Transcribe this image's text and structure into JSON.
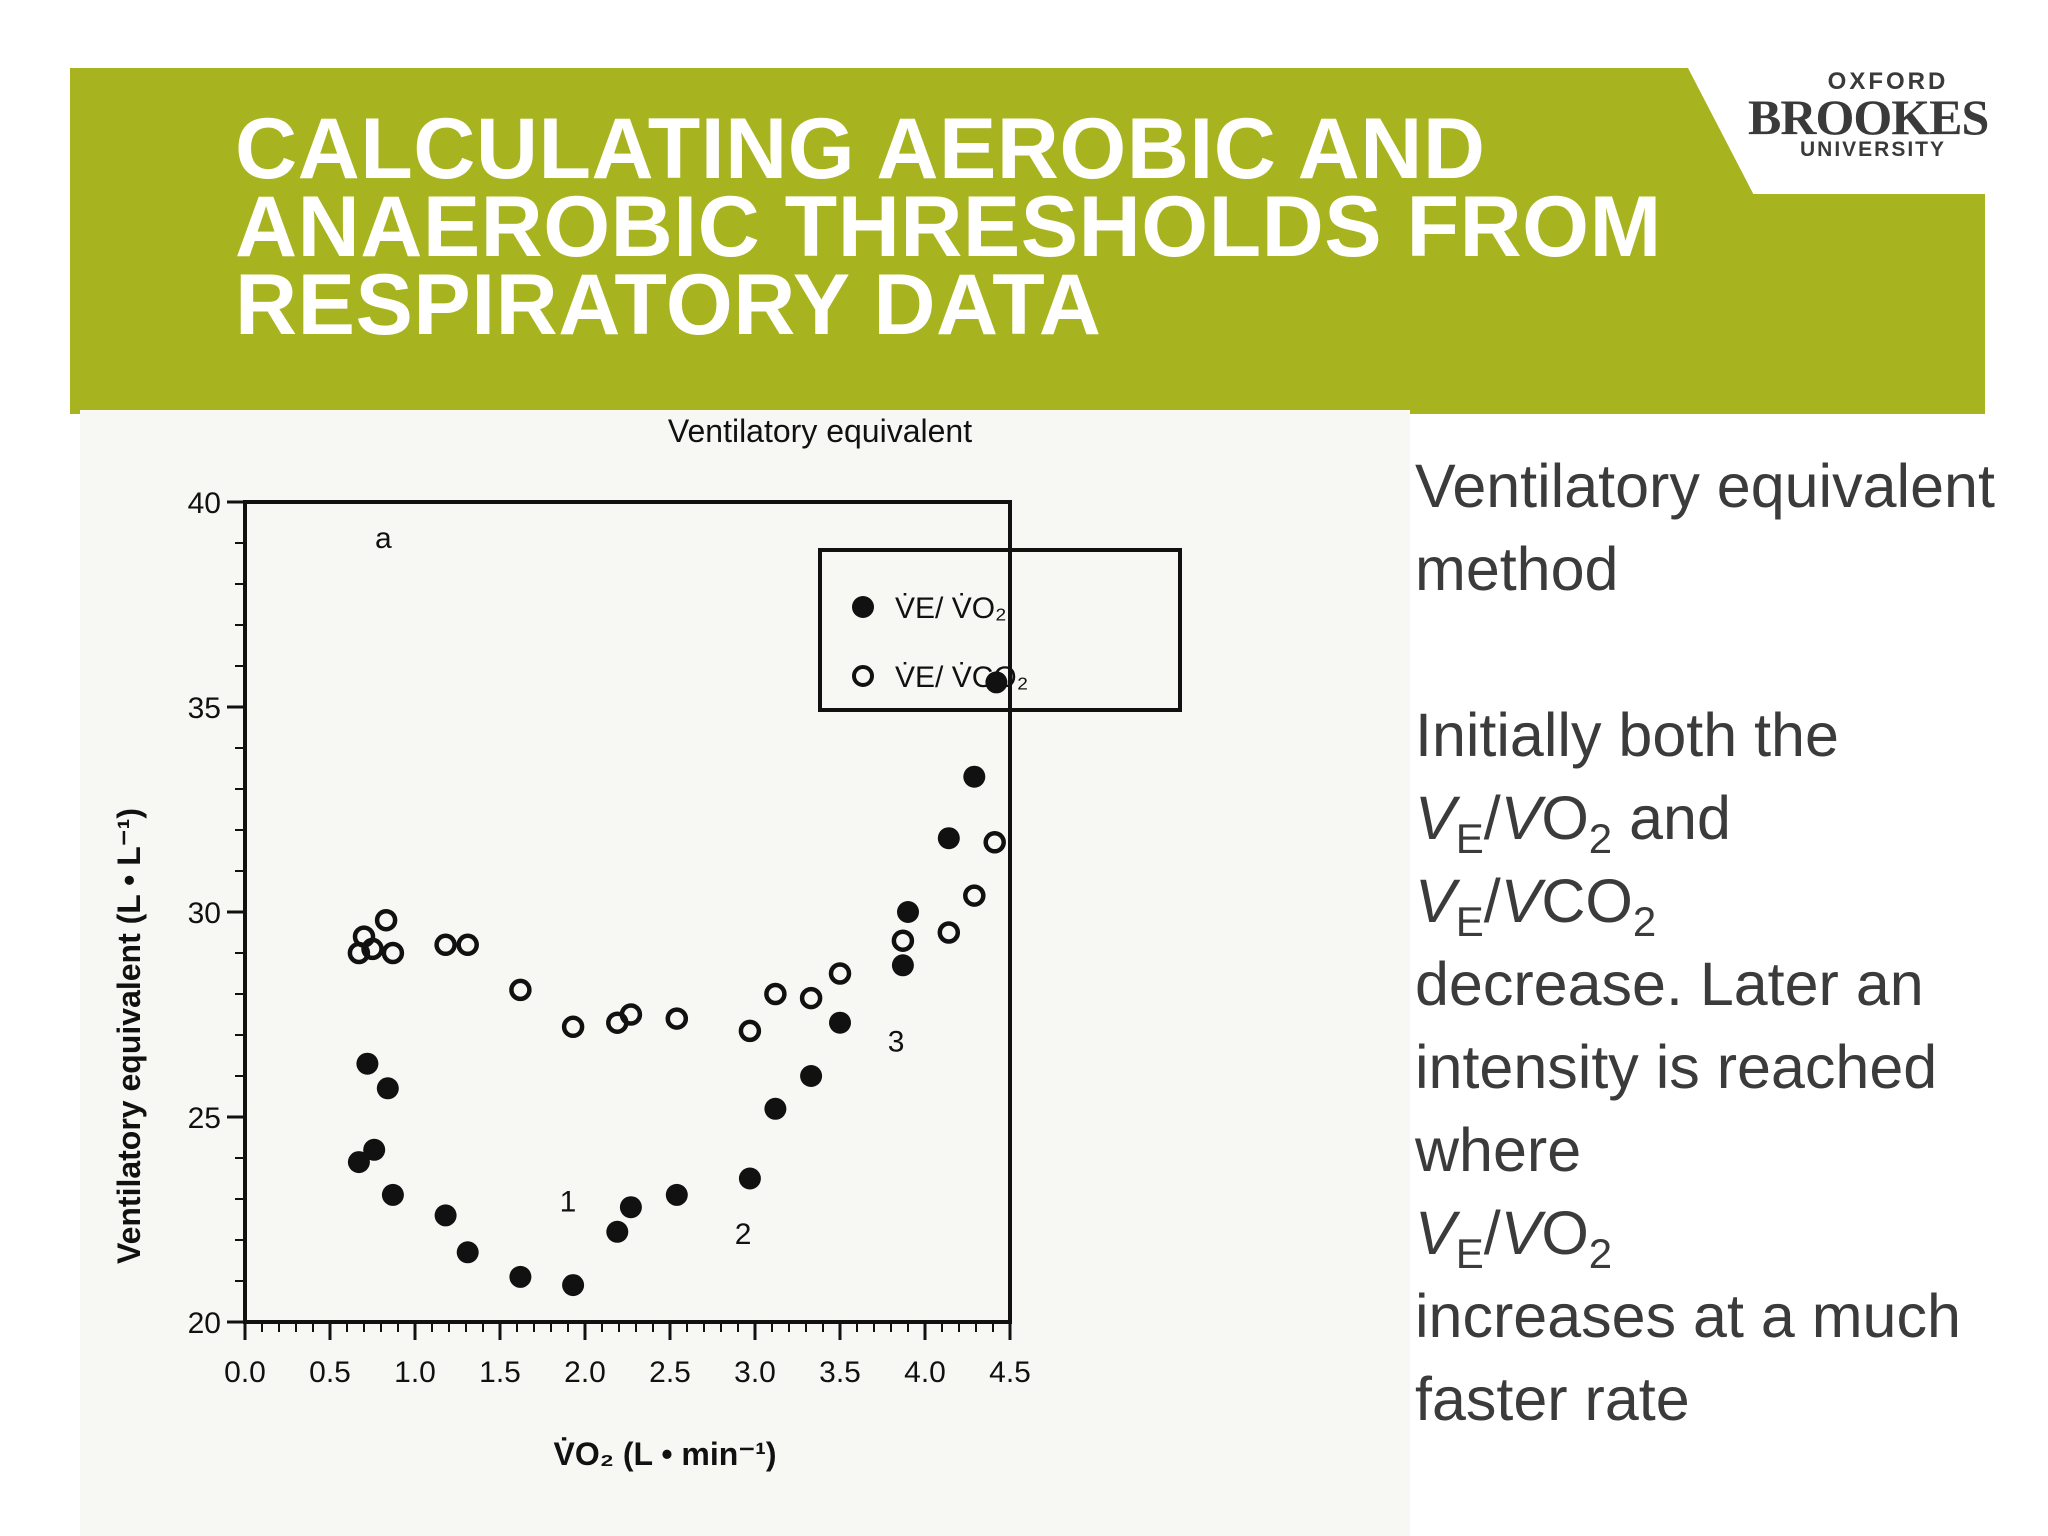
{
  "header": {
    "title_lines": [
      "CALCULATING AEROBIC AND",
      "ANAEROBIC THRESHOLDS FROM",
      "RESPIRATORY DATA"
    ],
    "logo": {
      "line1": "OXFORD",
      "line2": "BROOKES",
      "line3": "UNIVERSITY"
    }
  },
  "side_text": {
    "heading": "Ventilatory equivalent method",
    "body": {
      "intro": "Initially both the",
      "v": "V",
      "e": "E",
      "slash": "/",
      "o2": "O",
      "co2": "CO",
      "two": "2",
      "and": " and",
      "decrease": "decrease. Later an intensity is reached where",
      "increases": "increases at a much faster rate"
    }
  },
  "chart_data": {
    "type": "scatter",
    "title": "Ventilatory equivalent",
    "panel_label": "a",
    "xlabel": "V̇O₂ (L • min⁻¹)",
    "ylabel": "Ventilatory equivalent (L • L⁻¹)",
    "xlim": [
      0.0,
      4.5
    ],
    "ylim": [
      20,
      40
    ],
    "x_ticks": [
      "0.0",
      "0.5",
      "1.0",
      "1.5",
      "2.0",
      "2.5",
      "3.0",
      "3.5",
      "4.0",
      "4.5"
    ],
    "y_ticks": [
      "20",
      "25",
      "30",
      "35",
      "40"
    ],
    "legend_position": "top-right",
    "series": [
      {
        "name": "V̇E/ V̇O₂",
        "marker": "filled-circle",
        "points": [
          [
            0.67,
            23.9
          ],
          [
            0.72,
            26.3
          ],
          [
            0.76,
            24.2
          ],
          [
            0.84,
            25.7
          ],
          [
            0.87,
            23.1
          ],
          [
            1.18,
            22.6
          ],
          [
            1.31,
            21.7
          ],
          [
            1.62,
            21.1
          ],
          [
            1.93,
            20.9
          ],
          [
            2.19,
            22.2
          ],
          [
            2.27,
            22.8
          ],
          [
            2.54,
            23.1
          ],
          [
            2.97,
            23.5
          ],
          [
            3.12,
            25.2
          ],
          [
            3.33,
            26.0
          ],
          [
            3.5,
            27.3
          ],
          [
            3.87,
            28.7
          ],
          [
            3.9,
            30.0
          ],
          [
            4.14,
            31.8
          ],
          [
            4.29,
            33.3
          ],
          [
            4.42,
            35.6
          ]
        ]
      },
      {
        "name": "V̇E/ V̇CO₂",
        "marker": "open-circle",
        "points": [
          [
            0.67,
            29.0
          ],
          [
            0.7,
            29.4
          ],
          [
            0.75,
            29.1
          ],
          [
            0.83,
            29.8
          ],
          [
            0.87,
            29.0
          ],
          [
            1.18,
            29.2
          ],
          [
            1.31,
            29.2
          ],
          [
            1.62,
            28.1
          ],
          [
            1.93,
            27.2
          ],
          [
            2.19,
            27.3
          ],
          [
            2.27,
            27.5
          ],
          [
            2.54,
            27.4
          ],
          [
            2.97,
            27.1
          ],
          [
            3.12,
            28.0
          ],
          [
            3.33,
            27.9
          ],
          [
            3.5,
            28.5
          ],
          [
            3.87,
            29.3
          ],
          [
            4.14,
            29.5
          ],
          [
            4.29,
            30.4
          ],
          [
            4.41,
            31.7
          ]
        ]
      }
    ],
    "annotations": [
      {
        "text": "1",
        "x": 1.9,
        "y": 22.7
      },
      {
        "text": "2",
        "x": 2.93,
        "y": 21.9
      },
      {
        "text": "3",
        "x": 3.83,
        "y": 26.6
      }
    ]
  }
}
